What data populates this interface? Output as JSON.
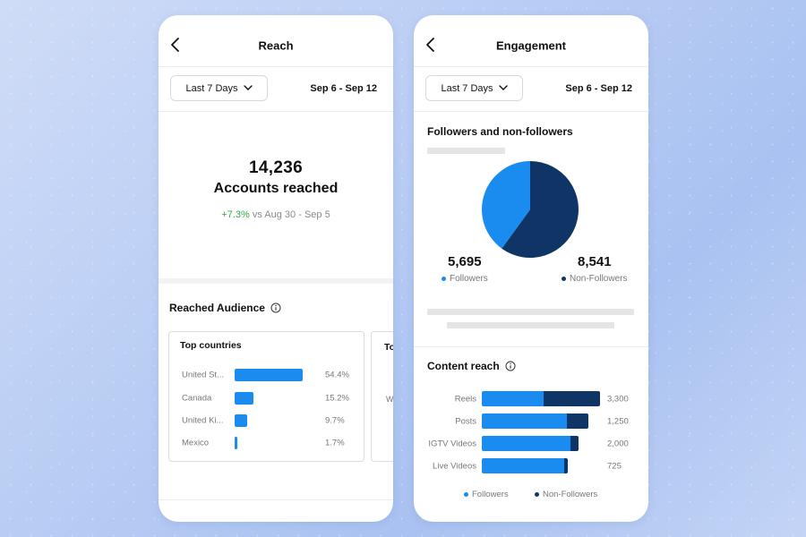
{
  "colors": {
    "followers": "#1a8cef",
    "non_followers": "#0f3566",
    "positive": "#37a94b"
  },
  "reach": {
    "title": "Reach",
    "back_icon": "chevron-left-icon",
    "range_label": "Last 7 Days",
    "date_range": "Sep 6 - Sep 12",
    "total": "14,236",
    "total_label": "Accounts reached",
    "change": "+7.3%",
    "compare_text": "vs Aug 30 - Sep 5",
    "audience_heading": "Reached Audience",
    "countries_title": "Top countries",
    "countries": [
      {
        "name": "United St...",
        "pct_label": "54.4%",
        "value": 54.4
      },
      {
        "name": "Canada",
        "pct_label": "15.2%",
        "value": 15.2
      },
      {
        "name": "United Ki...",
        "pct_label": "9.7%",
        "value": 9.7
      },
      {
        "name": "Mexico",
        "pct_label": "1.7%",
        "value": 1.7
      }
    ],
    "next_card_title": "To",
    "next_card_letter": "W"
  },
  "engagement": {
    "title": "Engagement",
    "back_icon": "chevron-left-icon",
    "range_label": "Last 7 Days",
    "date_range": "Sep 6 - Sep 12",
    "fnf_title": "Followers and non-followers",
    "followers_value": "5,695",
    "followers_label": "Followers",
    "non_followers_value": "8,541",
    "non_followers_label": "Non-Followers",
    "pie": {
      "followers": 5695,
      "non_followers": 8541
    },
    "content_heading": "Content reach",
    "content_rows": [
      {
        "label": "Reels",
        "value_label": "3,300",
        "total": 3300,
        "followers_share": 0.52
      },
      {
        "label": "Posts",
        "value_label": "1,250",
        "total": 1250,
        "followers_share": 0.8
      },
      {
        "label": "IGTV Videos",
        "value_label": "2,000",
        "total": 2000,
        "followers_share": 0.92
      },
      {
        "label": "Live Videos",
        "value_label": "725",
        "total": 725,
        "followers_share": 0.96
      }
    ],
    "legend_followers": "Followers",
    "legend_non_followers": "Non-Followers"
  }
}
